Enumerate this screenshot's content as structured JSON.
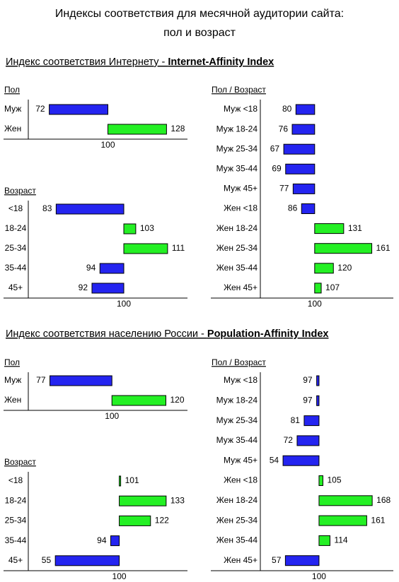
{
  "title_line1": "Индексы соответствия для месячной аудитории сайта:",
  "title_line2": "пол и возраст",
  "sections": [
    {
      "heading_text": "Индекс соответствия Интернету - ",
      "heading_bold": "Internet-Affinity Index"
    },
    {
      "heading_text": "Индекс соответствия населению России - ",
      "heading_bold": "Population-Affinity Index"
    }
  ],
  "chart_data": [
    {
      "type": "bar",
      "title": "Пол",
      "categories": [
        "Муж",
        "Жен"
      ],
      "values": [
        72,
        128
      ],
      "baseline": 100,
      "xlim": [
        62,
        138
      ],
      "xticks": [
        100
      ],
      "color_below": "#2424f0",
      "color_above": "#24f024"
    },
    {
      "type": "bar",
      "title": "Возраст",
      "categories": [
        "<18",
        "18-24",
        "25-34",
        "35-44",
        "45+"
      ],
      "values": [
        83,
        103,
        111,
        94,
        92
      ],
      "baseline": 100,
      "xlim": [
        76,
        116
      ],
      "xticks": [
        100
      ],
      "color_below": "#2424f0",
      "color_above": "#24f024"
    },
    {
      "type": "bar",
      "title": "Пол / Возраст",
      "categories": [
        "Муж <18",
        "Муж 18-24",
        "Муж 25-34",
        "Муж 35-44",
        "Муж 45+",
        "Жен <18",
        "Жен 18-24",
        "Жен 25-34",
        "Жен 35-44",
        "Жен 45+"
      ],
      "values": [
        80,
        76,
        67,
        69,
        77,
        86,
        131,
        161,
        120,
        107
      ],
      "baseline": 100,
      "xlim": [
        42,
        184
      ],
      "xticks": [
        100
      ],
      "color_below": "#2424f0",
      "color_above": "#24f024"
    },
    {
      "type": "bar",
      "title": "Пол",
      "categories": [
        "Муж",
        "Жен"
      ],
      "values": [
        77,
        120
      ],
      "baseline": 100,
      "xlim": [
        69,
        128
      ],
      "xticks": [
        100
      ],
      "color_below": "#2424f0",
      "color_above": "#24f024"
    },
    {
      "type": "bar",
      "title": "Возраст",
      "categories": [
        "<18",
        "18-24",
        "25-34",
        "35-44",
        "45+"
      ],
      "values": [
        101,
        133,
        122,
        94,
        55
      ],
      "baseline": 100,
      "xlim": [
        36,
        148
      ],
      "xticks": [
        100
      ],
      "color_below": "#2424f0",
      "color_above": "#24f024"
    },
    {
      "type": "bar",
      "title": "Пол / Возраст",
      "categories": [
        "Муж <18",
        "Муж 18-24",
        "Муж 25-34",
        "Муж 35-44",
        "Муж 45+",
        "Жен <18",
        "Жен 18-24",
        "Жен 25-34",
        "Жен 35-44",
        "Жен 45+"
      ],
      "values": [
        97,
        97,
        81,
        72,
        54,
        105,
        168,
        161,
        114,
        57
      ],
      "baseline": 100,
      "xlim": [
        25,
        195
      ],
      "xticks": [
        100
      ],
      "color_below": "#2424f0",
      "color_above": "#24f024"
    }
  ]
}
